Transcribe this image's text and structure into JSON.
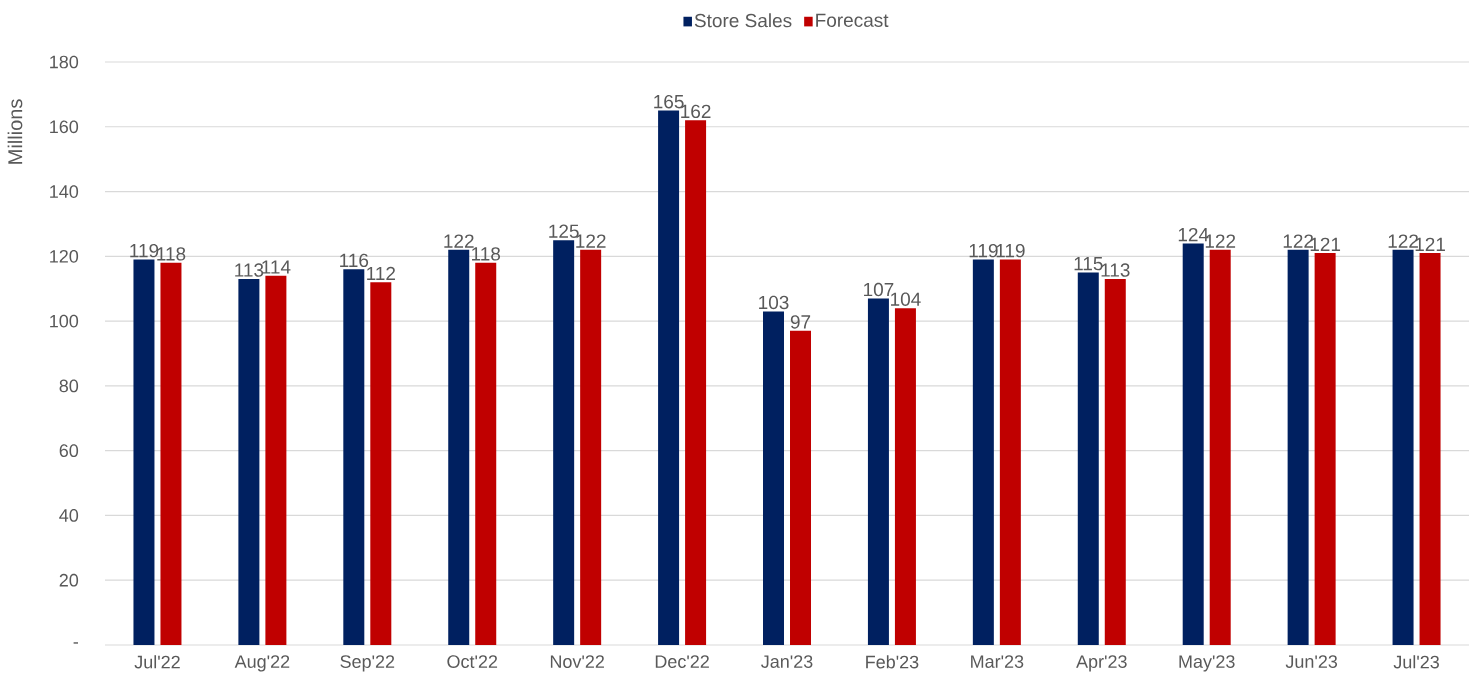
{
  "chart_data": {
    "type": "bar",
    "ylabel": "Millions",
    "categories": [
      "Jul'22",
      "Aug'22",
      "Sep'22",
      "Oct'22",
      "Nov'22",
      "Dec'22",
      "Jan'23",
      "Feb'23",
      "Mar'23",
      "Apr'23",
      "May'23",
      "Jun'23",
      "Jul'23"
    ],
    "series": [
      {
        "name": "Store Sales",
        "color": "#002060",
        "values": [
          119,
          113,
          116,
          122,
          125,
          165,
          103,
          107,
          119,
          115,
          124,
          122,
          122
        ]
      },
      {
        "name": "Forecast",
        "color": "#c00000",
        "values": [
          118,
          114,
          112,
          118,
          122,
          162,
          97,
          104,
          119,
          113,
          122,
          121,
          121
        ]
      }
    ],
    "ylim": [
      0,
      180
    ],
    "yticks": [
      {
        "value": 0,
        "label": "-"
      },
      20,
      40,
      60,
      80,
      100,
      120,
      140,
      160,
      180
    ],
    "grid": "y",
    "legend": "top",
    "data_labels": true
  }
}
